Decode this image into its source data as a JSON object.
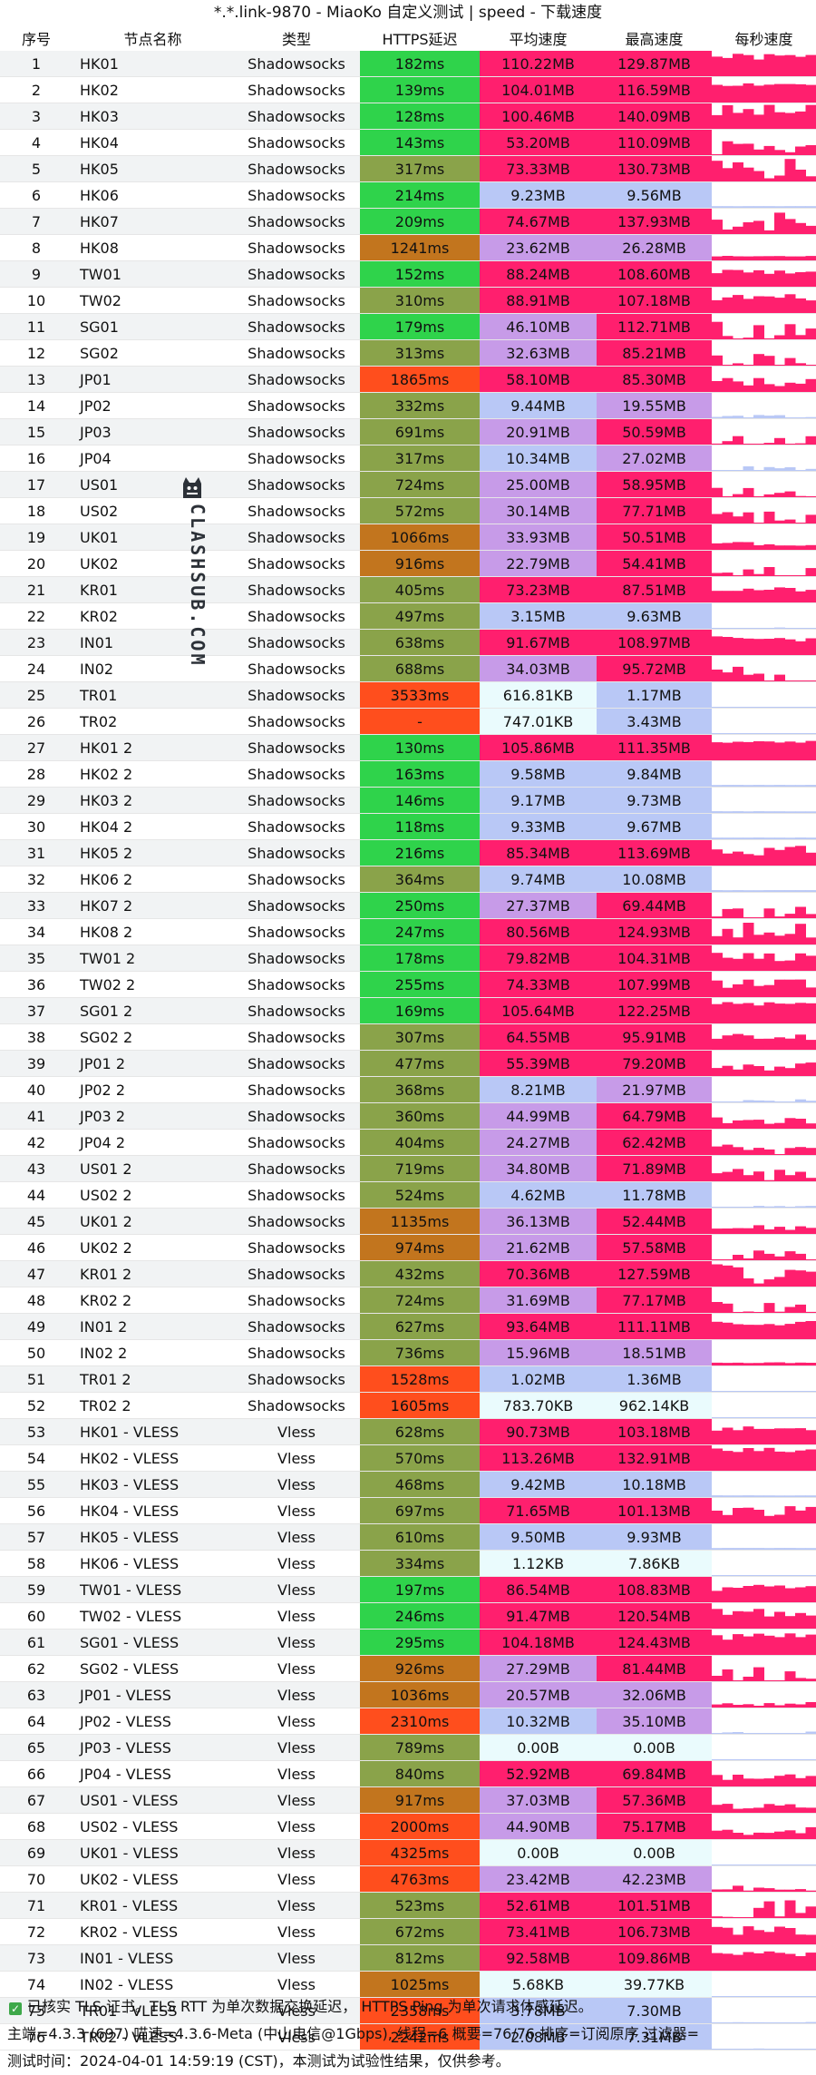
{
  "window": {
    "title": "*.*.link-9870 - MiaoKo 自定义测试 | speed - 下载速度"
  },
  "columns": [
    "序号",
    "节点名称",
    "类型",
    "HTTPS延迟",
    "平均速度",
    "最高速度",
    "每秒速度"
  ],
  "rows": [
    [
      "1",
      "HK01",
      "Shadowsocks",
      "182ms",
      "110.22MB",
      "129.87MB"
    ],
    [
      "2",
      "HK02",
      "Shadowsocks",
      "139ms",
      "104.01MB",
      "116.59MB"
    ],
    [
      "3",
      "HK03",
      "Shadowsocks",
      "128ms",
      "100.46MB",
      "140.09MB"
    ],
    [
      "4",
      "HK04",
      "Shadowsocks",
      "143ms",
      "53.20MB",
      "110.09MB"
    ],
    [
      "5",
      "HK05",
      "Shadowsocks",
      "317ms",
      "73.33MB",
      "130.73MB"
    ],
    [
      "6",
      "HK06",
      "Shadowsocks",
      "214ms",
      "9.23MB",
      "9.56MB"
    ],
    [
      "7",
      "HK07",
      "Shadowsocks",
      "209ms",
      "74.67MB",
      "137.93MB"
    ],
    [
      "8",
      "HK08",
      "Shadowsocks",
      "1241ms",
      "23.62MB",
      "26.28MB"
    ],
    [
      "9",
      "TW01",
      "Shadowsocks",
      "152ms",
      "88.24MB",
      "108.60MB"
    ],
    [
      "10",
      "TW02",
      "Shadowsocks",
      "310ms",
      "88.91MB",
      "107.18MB"
    ],
    [
      "11",
      "SG01",
      "Shadowsocks",
      "179ms",
      "46.10MB",
      "112.71MB"
    ],
    [
      "12",
      "SG02",
      "Shadowsocks",
      "313ms",
      "32.63MB",
      "85.21MB"
    ],
    [
      "13",
      "JP01",
      "Shadowsocks",
      "1865ms",
      "58.10MB",
      "85.30MB"
    ],
    [
      "14",
      "JP02",
      "Shadowsocks",
      "332ms",
      "9.44MB",
      "19.55MB"
    ],
    [
      "15",
      "JP03",
      "Shadowsocks",
      "691ms",
      "20.91MB",
      "50.59MB"
    ],
    [
      "16",
      "JP04",
      "Shadowsocks",
      "317ms",
      "10.34MB",
      "27.02MB"
    ],
    [
      "17",
      "US01",
      "Shadowsocks",
      "724ms",
      "25.00MB",
      "58.95MB"
    ],
    [
      "18",
      "US02",
      "Shadowsocks",
      "572ms",
      "30.14MB",
      "77.71MB"
    ],
    [
      "19",
      "UK01",
      "Shadowsocks",
      "1066ms",
      "33.93MB",
      "50.51MB"
    ],
    [
      "20",
      "UK02",
      "Shadowsocks",
      "916ms",
      "22.79MB",
      "54.41MB"
    ],
    [
      "21",
      "KR01",
      "Shadowsocks",
      "405ms",
      "73.23MB",
      "87.51MB"
    ],
    [
      "22",
      "KR02",
      "Shadowsocks",
      "497ms",
      "3.15MB",
      "9.63MB"
    ],
    [
      "23",
      "IN01",
      "Shadowsocks",
      "638ms",
      "91.67MB",
      "108.97MB"
    ],
    [
      "24",
      "IN02",
      "Shadowsocks",
      "688ms",
      "34.03MB",
      "95.72MB"
    ],
    [
      "25",
      "TR01",
      "Shadowsocks",
      "3533ms",
      "616.81KB",
      "1.17MB"
    ],
    [
      "26",
      "TR02",
      "Shadowsocks",
      "-",
      "747.01KB",
      "3.43MB"
    ],
    [
      "27",
      "HK01 2",
      "Shadowsocks",
      "130ms",
      "105.86MB",
      "111.35MB"
    ],
    [
      "28",
      "HK02 2",
      "Shadowsocks",
      "163ms",
      "9.58MB",
      "9.84MB"
    ],
    [
      "29",
      "HK03 2",
      "Shadowsocks",
      "146ms",
      "9.17MB",
      "9.73MB"
    ],
    [
      "30",
      "HK04 2",
      "Shadowsocks",
      "118ms",
      "9.33MB",
      "9.67MB"
    ],
    [
      "31",
      "HK05 2",
      "Shadowsocks",
      "216ms",
      "85.34MB",
      "113.69MB"
    ],
    [
      "32",
      "HK06 2",
      "Shadowsocks",
      "364ms",
      "9.74MB",
      "10.08MB"
    ],
    [
      "33",
      "HK07 2",
      "Shadowsocks",
      "250ms",
      "27.37MB",
      "69.44MB"
    ],
    [
      "34",
      "HK08 2",
      "Shadowsocks",
      "247ms",
      "80.56MB",
      "124.93MB"
    ],
    [
      "35",
      "TW01 2",
      "Shadowsocks",
      "178ms",
      "79.82MB",
      "104.31MB"
    ],
    [
      "36",
      "TW02 2",
      "Shadowsocks",
      "255ms",
      "74.33MB",
      "107.99MB"
    ],
    [
      "37",
      "SG01 2",
      "Shadowsocks",
      "169ms",
      "105.64MB",
      "122.25MB"
    ],
    [
      "38",
      "SG02 2",
      "Shadowsocks",
      "307ms",
      "64.55MB",
      "95.91MB"
    ],
    [
      "39",
      "JP01 2",
      "Shadowsocks",
      "477ms",
      "55.39MB",
      "79.20MB"
    ],
    [
      "40",
      "JP02 2",
      "Shadowsocks",
      "368ms",
      "8.21MB",
      "21.97MB"
    ],
    [
      "41",
      "JP03 2",
      "Shadowsocks",
      "360ms",
      "44.99MB",
      "64.79MB"
    ],
    [
      "42",
      "JP04 2",
      "Shadowsocks",
      "404ms",
      "24.27MB",
      "62.42MB"
    ],
    [
      "43",
      "US01 2",
      "Shadowsocks",
      "719ms",
      "34.80MB",
      "71.89MB"
    ],
    [
      "44",
      "US02 2",
      "Shadowsocks",
      "524ms",
      "4.62MB",
      "11.78MB"
    ],
    [
      "45",
      "UK01 2",
      "Shadowsocks",
      "1135ms",
      "36.13MB",
      "52.44MB"
    ],
    [
      "46",
      "UK02 2",
      "Shadowsocks",
      "974ms",
      "21.62MB",
      "57.58MB"
    ],
    [
      "47",
      "KR01 2",
      "Shadowsocks",
      "432ms",
      "70.36MB",
      "127.59MB"
    ],
    [
      "48",
      "KR02 2",
      "Shadowsocks",
      "724ms",
      "31.69MB",
      "77.17MB"
    ],
    [
      "49",
      "IN01 2",
      "Shadowsocks",
      "627ms",
      "93.64MB",
      "111.11MB"
    ],
    [
      "50",
      "IN02 2",
      "Shadowsocks",
      "736ms",
      "15.96MB",
      "18.51MB"
    ],
    [
      "51",
      "TR01 2",
      "Shadowsocks",
      "1528ms",
      "1.02MB",
      "1.36MB"
    ],
    [
      "52",
      "TR02 2",
      "Shadowsocks",
      "1605ms",
      "783.70KB",
      "962.14KB"
    ],
    [
      "53",
      "HK01 - VLESS",
      "Vless",
      "628ms",
      "90.73MB",
      "103.18MB"
    ],
    [
      "54",
      "HK02 - VLESS",
      "Vless",
      "570ms",
      "113.26MB",
      "132.91MB"
    ],
    [
      "55",
      "HK03 - VLESS",
      "Vless",
      "468ms",
      "9.42MB",
      "10.18MB"
    ],
    [
      "56",
      "HK04 - VLESS",
      "Vless",
      "697ms",
      "71.65MB",
      "101.13MB"
    ],
    [
      "57",
      "HK05 - VLESS",
      "Vless",
      "610ms",
      "9.50MB",
      "9.93MB"
    ],
    [
      "58",
      "HK06 - VLESS",
      "Vless",
      "334ms",
      "1.12KB",
      "7.86KB"
    ],
    [
      "59",
      "TW01 - VLESS",
      "Vless",
      "197ms",
      "86.54MB",
      "108.83MB"
    ],
    [
      "60",
      "TW02 - VLESS",
      "Vless",
      "246ms",
      "91.47MB",
      "120.54MB"
    ],
    [
      "61",
      "SG01 - VLESS",
      "Vless",
      "295ms",
      "104.18MB",
      "124.43MB"
    ],
    [
      "62",
      "SG02 - VLESS",
      "Vless",
      "926ms",
      "27.29MB",
      "81.44MB"
    ],
    [
      "63",
      "JP01 - VLESS",
      "Vless",
      "1036ms",
      "20.57MB",
      "32.06MB"
    ],
    [
      "64",
      "JP02 - VLESS",
      "Vless",
      "2310ms",
      "10.32MB",
      "35.10MB"
    ],
    [
      "65",
      "JP03 - VLESS",
      "Vless",
      "789ms",
      "0.00B",
      "0.00B"
    ],
    [
      "66",
      "JP04 - VLESS",
      "Vless",
      "840ms",
      "52.92MB",
      "69.84MB"
    ],
    [
      "67",
      "US01 - VLESS",
      "Vless",
      "917ms",
      "37.03MB",
      "57.36MB"
    ],
    [
      "68",
      "US02 - VLESS",
      "Vless",
      "2000ms",
      "44.90MB",
      "75.17MB"
    ],
    [
      "69",
      "UK01 - VLESS",
      "Vless",
      "4325ms",
      "0.00B",
      "0.00B"
    ],
    [
      "70",
      "UK02 - VLESS",
      "Vless",
      "4763ms",
      "23.42MB",
      "42.23MB"
    ],
    [
      "71",
      "KR01 - VLESS",
      "Vless",
      "523ms",
      "52.61MB",
      "101.51MB"
    ],
    [
      "72",
      "KR02 - VLESS",
      "Vless",
      "672ms",
      "73.41MB",
      "106.73MB"
    ],
    [
      "73",
      "IN01 - VLESS",
      "Vless",
      "812ms",
      "92.58MB",
      "109.86MB"
    ],
    [
      "74",
      "IN02 - VLESS",
      "Vless",
      "1025ms",
      "5.68KB",
      "39.77KB"
    ],
    [
      "75",
      "TR01 - VLESS",
      "Vless",
      "2358ms",
      "3.78MB",
      "7.30MB"
    ],
    [
      "76",
      "TR02 - VLESS",
      "Vless",
      "2242ms",
      "2.08MB",
      "7.31MB"
    ]
  ],
  "footer": {
    "line1": "已核实 TLS 证书。TLS RTT 为单次数据交换延迟， HTTPS Ping 为单次请求体感延迟。",
    "line2": "主端=4.3.3 (697) 喵速=4.3.6-Meta (中山电信@1Gbps), 线程=6 概要=76/76 排序=订阅原序 过滤器=",
    "line3": "测试时间：2024-04-01 14:59:19 (CST)，本测试为试验性结果，仅供参考。"
  },
  "watermark": {
    "text": "CLASHSUB.COM"
  },
  "colors": {
    "latency_fast": "#2fd34b",
    "latency_mid": "#8aa34a",
    "latency_slow": "#c2751e",
    "latency_bad": "#ff4e1d",
    "speed_high": "#ff1f6e",
    "speed_mid": "#c79be8",
    "speed_low": "#b9c8f6",
    "speed_none": "#eafbfd",
    "spark_bar": "#ff1f6e"
  },
  "icons": {
    "check": "check-icon",
    "watermark": "cat-logo-icon"
  }
}
